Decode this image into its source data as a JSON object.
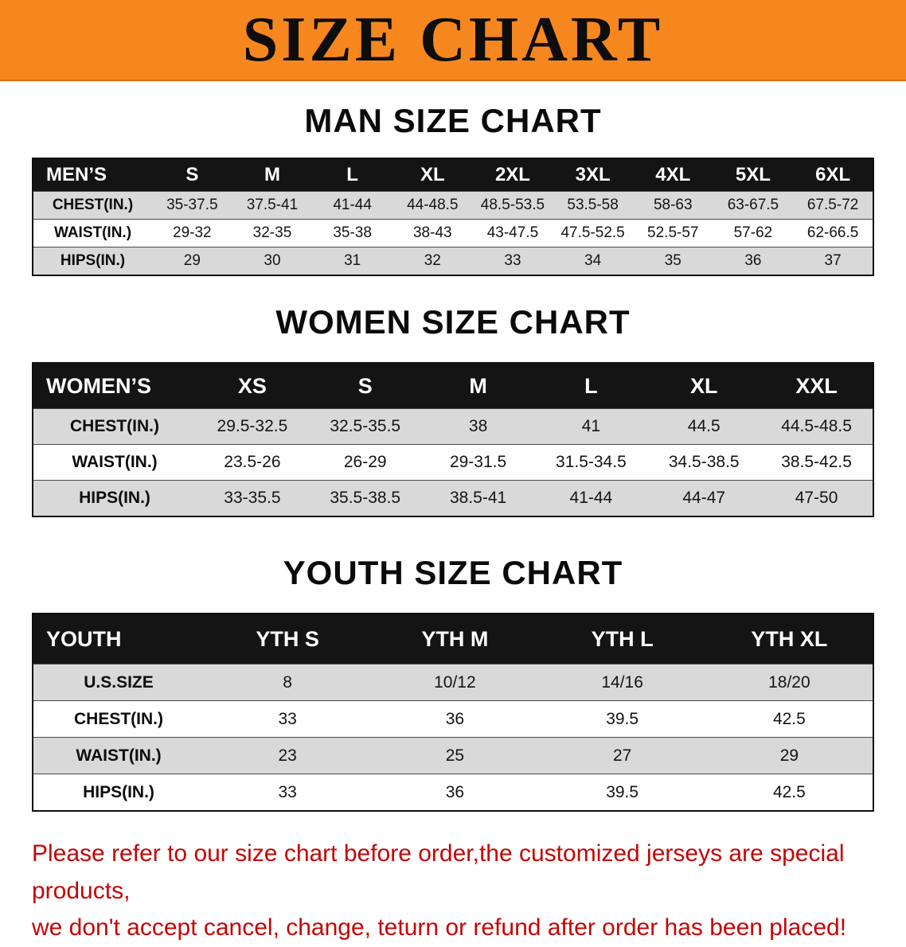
{
  "banner": {
    "title": "SIZE CHART"
  },
  "colors": {
    "banner_orange": "#f6871f",
    "table_header_black": "#141414",
    "row_gray": "#d9d9d9",
    "note_red": "#c40606"
  },
  "sections": [
    {
      "heading": "MAN SIZE CHART",
      "table": {
        "header": [
          "MEN’S",
          "S",
          "M",
          "L",
          "XL",
          "2XL",
          "3XL",
          "4XL",
          "5XL",
          "6XL"
        ],
        "rows": [
          [
            "CHEST(IN.)",
            "35-37.5",
            "37.5-41",
            "41-44",
            "44-48.5",
            "48.5-53.5",
            "53.5-58",
            "58-63",
            "63-67.5",
            "67.5-72"
          ],
          [
            "WAIST(IN.)",
            "29-32",
            "32-35",
            "35-38",
            "38-43",
            "43-47.5",
            "47.5-52.5",
            "52.5-57",
            "57-62",
            "62-66.5"
          ],
          [
            "HIPS(IN.)",
            "29",
            "30",
            "31",
            "32",
            "33",
            "34",
            "35",
            "36",
            "37"
          ]
        ]
      }
    },
    {
      "heading": "WOMEN SIZE CHART",
      "table": {
        "header": [
          "WOMEN’S",
          "XS",
          "S",
          "M",
          "L",
          "XL",
          "XXL"
        ],
        "rows": [
          [
            "CHEST(IN.)",
            "29.5-32.5",
            "32.5-35.5",
            "38",
            "41",
            "44.5",
            "44.5-48.5"
          ],
          [
            "WAIST(IN.)",
            "23.5-26",
            "26-29",
            "29-31.5",
            "31.5-34.5",
            "34.5-38.5",
            "38.5-42.5"
          ],
          [
            "HIPS(IN.)",
            "33-35.5",
            "35.5-38.5",
            "38.5-41",
            "41-44",
            "44-47",
            "47-50"
          ]
        ]
      }
    },
    {
      "heading": "YOUTH SIZE CHART",
      "table": {
        "header": [
          "YOUTH",
          "YTH S",
          "YTH M",
          "YTH L",
          "YTH XL"
        ],
        "rows": [
          [
            "U.S.SIZE",
            "8",
            "10/12",
            "14/16",
            "18/20"
          ],
          [
            "CHEST(IN.)",
            "33",
            "36",
            "39.5",
            "42.5"
          ],
          [
            "WAIST(IN.)",
            "23",
            "25",
            "27",
            "29"
          ],
          [
            "HIPS(IN.)",
            "33",
            "36",
            "39.5",
            "42.5"
          ]
        ]
      }
    }
  ],
  "footer": {
    "lines": [
      "Please refer to our size chart before order,the customized jerseys are special products,",
      "we don't accept cancel, change, teturn or refund after order has been placed!"
    ]
  }
}
